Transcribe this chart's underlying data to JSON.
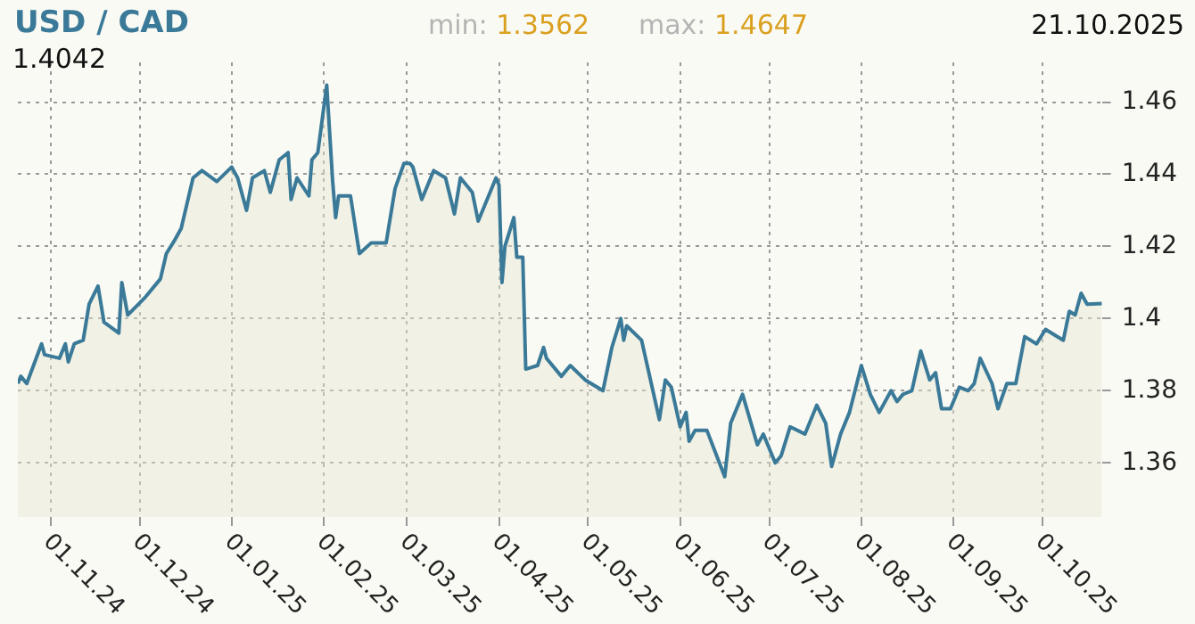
{
  "chart_data": {
    "type": "area",
    "title": "USD / CAD",
    "annotations": [
      "min: 1.3562",
      "max: 1.4647",
      "21.10.2025",
      "1.4042"
    ],
    "xlim": [
      "2024-10-21",
      "2025-10-21"
    ],
    "xticks": [
      {
        "value": "2024-11-01",
        "label": "01.11.24"
      },
      {
        "value": "2024-12-01",
        "label": "01.12.24"
      },
      {
        "value": "2025-01-01",
        "label": "01.01.25"
      },
      {
        "value": "2025-02-01",
        "label": "01.02.25"
      },
      {
        "value": "2025-03-01",
        "label": "01.03.25"
      },
      {
        "value": "2025-04-01",
        "label": "01.04.25"
      },
      {
        "value": "2025-05-01",
        "label": "01.05.25"
      },
      {
        "value": "2025-06-01",
        "label": "01.06.25"
      },
      {
        "value": "2025-07-01",
        "label": "01.07.25"
      },
      {
        "value": "2025-08-01",
        "label": "01.08.25"
      },
      {
        "value": "2025-09-01",
        "label": "01.09.25"
      },
      {
        "value": "2025-10-01",
        "label": "01.10.25"
      }
    ],
    "ylim": [
      1.345,
      1.471
    ],
    "yticks": [
      1.36,
      1.38,
      1.4,
      1.42,
      1.44,
      1.46
    ],
    "grid": true,
    "legend": false,
    "series": [
      {
        "color": "#3a7a98",
        "x": [
          "2024-10-21",
          "2024-10-22",
          "2024-10-24",
          "2024-10-29",
          "2024-10-30",
          "2024-11-04",
          "2024-11-06",
          "2024-11-07",
          "2024-11-09",
          "2024-11-12",
          "2024-11-14",
          "2024-11-17",
          "2024-11-19",
          "2024-11-24",
          "2024-11-25",
          "2024-11-27",
          "2024-12-03",
          "2024-12-08",
          "2024-12-10",
          "2024-12-13",
          "2024-12-15",
          "2024-12-19",
          "2024-12-22",
          "2024-12-27",
          "2025-01-01",
          "2025-01-03",
          "2025-01-06",
          "2025-01-08",
          "2025-01-12",
          "2025-01-14",
          "2025-01-17",
          "2025-01-20",
          "2025-01-21",
          "2025-01-23",
          "2025-01-27",
          "2025-01-28",
          "2025-01-30",
          "2025-02-02",
          "2025-02-04",
          "2025-02-05",
          "2025-02-06",
          "2025-02-10",
          "2025-02-13",
          "2025-02-17",
          "2025-02-22",
          "2025-02-25",
          "2025-02-28",
          "2025-03-02",
          "2025-03-03",
          "2025-03-06",
          "2025-03-10",
          "2025-03-14",
          "2025-03-17",
          "2025-03-19",
          "2025-03-23",
          "2025-03-25",
          "2025-03-31",
          "2025-04-01",
          "2025-04-02",
          "2025-04-03",
          "2025-04-06",
          "2025-04-07",
          "2025-04-09",
          "2025-04-10",
          "2025-04-14",
          "2025-04-16",
          "2025-04-17",
          "2025-04-22",
          "2025-04-25",
          "2025-04-30",
          "2025-05-06",
          "2025-05-09",
          "2025-05-12",
          "2025-05-13",
          "2025-05-14",
          "2025-05-19",
          "2025-05-25",
          "2025-05-27",
          "2025-05-29",
          "2025-06-01",
          "2025-06-03",
          "2025-06-04",
          "2025-06-06",
          "2025-06-10",
          "2025-06-16",
          "2025-06-18",
          "2025-06-22",
          "2025-06-27",
          "2025-06-29",
          "2025-07-03",
          "2025-07-05",
          "2025-07-08",
          "2025-07-13",
          "2025-07-17",
          "2025-07-20",
          "2025-07-22",
          "2025-07-25",
          "2025-07-28",
          "2025-08-01",
          "2025-08-04",
          "2025-08-07",
          "2025-08-11",
          "2025-08-13",
          "2025-08-15",
          "2025-08-18",
          "2025-08-21",
          "2025-08-24",
          "2025-08-26",
          "2025-08-28",
          "2025-08-31",
          "2025-09-03",
          "2025-09-06",
          "2025-09-08",
          "2025-09-10",
          "2025-09-14",
          "2025-09-16",
          "2025-09-19",
          "2025-09-22",
          "2025-09-25",
          "2025-09-29",
          "2025-10-02",
          "2025-10-08",
          "2025-10-10",
          "2025-10-12",
          "2025-10-14",
          "2025-10-16",
          "2025-10-21"
        ],
        "values": [
          1.382,
          1.384,
          1.382,
          1.393,
          1.39,
          1.389,
          1.393,
          1.388,
          1.393,
          1.394,
          1.404,
          1.409,
          1.399,
          1.396,
          1.41,
          1.401,
          1.406,
          1.411,
          1.418,
          1.422,
          1.425,
          1.439,
          1.441,
          1.438,
          1.442,
          1.439,
          1.43,
          1.439,
          1.441,
          1.435,
          1.444,
          1.446,
          1.433,
          1.439,
          1.434,
          1.444,
          1.446,
          1.4647,
          1.438,
          1.428,
          1.434,
          1.434,
          1.418,
          1.421,
          1.421,
          1.436,
          1.443,
          1.443,
          1.442,
          1.433,
          1.441,
          1.439,
          1.429,
          1.439,
          1.435,
          1.427,
          1.439,
          1.437,
          1.41,
          1.42,
          1.428,
          1.417,
          1.417,
          1.386,
          1.387,
          1.392,
          1.389,
          1.384,
          1.387,
          1.383,
          1.38,
          1.392,
          1.4,
          1.394,
          1.398,
          1.394,
          1.372,
          1.383,
          1.381,
          1.37,
          1.374,
          1.366,
          1.369,
          1.369,
          1.3562,
          1.371,
          1.379,
          1.365,
          1.368,
          1.36,
          1.362,
          1.37,
          1.368,
          1.376,
          1.371,
          1.359,
          1.368,
          1.374,
          1.387,
          1.379,
          1.374,
          1.38,
          1.377,
          1.379,
          1.38,
          1.391,
          1.383,
          1.385,
          1.375,
          1.375,
          1.381,
          1.38,
          1.382,
          1.389,
          1.382,
          1.375,
          1.382,
          1.382,
          1.395,
          1.393,
          1.397,
          1.394,
          1.402,
          1.401,
          1.407,
          1.404,
          1.4042
        ]
      }
    ]
  }
}
